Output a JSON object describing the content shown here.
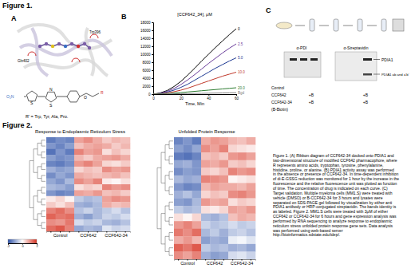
{
  "figure1": {
    "label": "Figure 1.",
    "panel_a": {
      "label": "A",
      "residues": [
        "Gln402",
        "Trp396"
      ],
      "structure_atoms": [
        "O₂N",
        "S",
        "N",
        "S",
        "O",
        "R"
      ],
      "note": "R' = Trp, Tyr, Ala, Pro."
    },
    "panel_b": {
      "label": "B"
    },
    "panel_c": {
      "label": "C",
      "blots": [
        "α-PDI",
        "α-Streptavidin"
      ],
      "bands": [
        "PDIA1",
        "PDIA1 ab and a'b'"
      ],
      "treatments": [
        {
          "label": "Control"
        },
        {
          "label": "CCF642",
          "marks": [
            "+B",
            "+B"
          ]
        },
        {
          "label": "CCF642-34",
          "marks": [
            "+B",
            "+B"
          ]
        },
        {
          "label": "(B-Biotin)"
        }
      ]
    }
  },
  "figure2": {
    "label": "Figure 2."
  },
  "caption": [
    "Figure 1. (A) Ribbon diagram of CCF642-34 docked onto PDIA1 and",
    "two-dimensional structure of modified CCF642 pharmacophore, where",
    "R represents amino acids, tryptophan, tyrosine, phenylalanine,",
    "histidine, proline, or alanine. (B) PDIA1 activity assay was performed",
    "in the absence or presence of CCF642-34. In time-dependent inhibition",
    "of di-E-GSSG reduction was monitored for 1 hour by the increase in the",
    "fluorescence and the relative fluorescence unit was plotted as function",
    "of time. The concentration of drug is indicated on each curve. (C)",
    "Target validation. Multiple myeloma cells (MM1.S) were treated with",
    "vehicle (DMSO) or B-CCF642-34 for 3 hours and lysates were",
    "separated on SDS-PAGE gel followed by visualization by either anti",
    "PDIA1 antibody or HRP-conjugated streptavidin. The bands identity is",
    "as labeled. Figure 2. MM1.S cells were treated with 3μM of either",
    "CCF642 or CCF642-34 for 6 hours and gene expression analysis was",
    "performed by RNA sequencing to analyze response to endoplasmic",
    "reticulum stress unfolded protein response gene sets. Data analysis",
    "was performed using web-based server",
    "http://bioinformatics.sdstate.edu/idep/."
  ],
  "chart_data": [
    {
      "type": "line",
      "title": "[CCF642_34], μM",
      "x_label": "Time, Min",
      "x": [
        0,
        5,
        10,
        15,
        20,
        25,
        30,
        35,
        40,
        45,
        50,
        55,
        60
      ],
      "xlim": [
        0,
        60
      ],
      "xticks": [
        0,
        20,
        40,
        60
      ],
      "ylim": [
        0,
        18000
      ],
      "yticks": [
        0,
        2000,
        4000,
        6000,
        8000,
        10000,
        12000,
        14000,
        16000,
        18000
      ],
      "series": [
        {
          "name": "0",
          "color": "#000000",
          "values": [
            0,
            300,
            900,
            1900,
            3200,
            4800,
            6500,
            8300,
            10000,
            11700,
            13300,
            14900,
            16400
          ]
        },
        {
          "name": "2.5",
          "color": "#6a3d9a",
          "values": [
            0,
            200,
            700,
            1400,
            2400,
            3600,
            4900,
            6300,
            7700,
            9000,
            10300,
            11500,
            12600
          ]
        },
        {
          "name": "5.0",
          "color": "#1f3a93",
          "values": [
            0,
            150,
            500,
            1000,
            1700,
            2500,
            3500,
            4500,
            5500,
            6500,
            7400,
            8300,
            9100
          ]
        },
        {
          "name": "10.0",
          "color": "#c0392b",
          "values": [
            0,
            100,
            300,
            600,
            1000,
            1500,
            2100,
            2700,
            3300,
            3900,
            4500,
            5000,
            5500
          ]
        },
        {
          "name": "20.0",
          "color": "#2e7d32",
          "values": [
            0,
            50,
            150,
            250,
            400,
            550,
            700,
            850,
            1000,
            1150,
            1300,
            1450,
            1600
          ]
        },
        {
          "name": "Bgd",
          "color": "#808080",
          "values": [
            0,
            20,
            50,
            80,
            110,
            140,
            170,
            200,
            230,
            260,
            290,
            320,
            350
          ]
        }
      ]
    },
    {
      "type": "heatmap",
      "title": "Response to Endoplasmic Reticulum Stress",
      "categories": [
        null,
        "Control",
        null,
        null,
        "CCF642",
        null,
        null,
        "CCF642-34",
        null
      ],
      "tick_labels": "x",
      "colorbar": {
        "lim": [
          -2,
          2
        ],
        "ticks": [
          -2,
          0,
          2
        ]
      },
      "cells": [
        [
          -1.5,
          -1.3,
          -1.4,
          0.9,
          1.1,
          0.8,
          0.5,
          0.7,
          0.6
        ],
        [
          -1.2,
          -1.4,
          -1.1,
          0.6,
          0.8,
          0.9,
          0.8,
          0.5,
          0.7
        ],
        [
          -1.6,
          -1.2,
          -1.5,
          1.2,
          0.9,
          1.0,
          0.3,
          0.6,
          0.4
        ],
        [
          -1.1,
          -1.3,
          -1.2,
          0.7,
          0.5,
          0.8,
          0.9,
          1.0,
          0.8
        ],
        [
          -1.4,
          -1.5,
          -1.3,
          1.0,
          1.2,
          0.9,
          0.4,
          0.3,
          0.5
        ],
        [
          -0.9,
          -1.1,
          -1.0,
          0.4,
          0.6,
          0.5,
          1.1,
          0.9,
          1.0
        ],
        [
          -1.3,
          -1.0,
          -1.2,
          0.8,
          0.7,
          0.6,
          0.7,
          0.8,
          0.6
        ],
        [
          -1.0,
          -1.2,
          -0.8,
          1.1,
          0.9,
          1.2,
          0.2,
          0.1,
          0.3
        ],
        [
          -0.8,
          -0.9,
          -1.1,
          0.3,
          0.5,
          0.4,
          1.2,
          1.0,
          1.1
        ],
        [
          -1.2,
          -1.4,
          -1.3,
          0.9,
          0.8,
          1.0,
          0.6,
          0.7,
          0.5
        ],
        [
          0.2,
          0.4,
          0.1,
          -0.6,
          -0.8,
          -0.7,
          0.9,
          1.1,
          1.0
        ],
        [
          0.5,
          0.3,
          0.6,
          -0.9,
          -1.0,
          -0.8,
          0.8,
          0.6,
          0.7
        ],
        [
          1.2,
          1.4,
          1.1,
          -0.7,
          -0.5,
          -0.8,
          -0.6,
          -0.4,
          -0.7
        ],
        [
          1.5,
          1.3,
          1.4,
          -0.9,
          -1.1,
          -0.8,
          -0.5,
          -0.6,
          -0.4
        ],
        [
          1.1,
          1.0,
          1.3,
          -0.4,
          -0.6,
          -0.5,
          -0.8,
          -0.9,
          -0.7
        ],
        [
          1.4,
          1.6,
          1.2,
          -1.0,
          -0.8,
          -0.9,
          -0.3,
          -0.5,
          -0.4
        ]
      ]
    },
    {
      "type": "heatmap",
      "title": "Unfolded Protein Response",
      "categories": [
        null,
        "Control",
        null,
        null,
        "CCF642",
        null,
        null,
        "CCF642-34",
        null
      ],
      "tick_labels": "x",
      "cells": [
        [
          -1.4,
          -1.2,
          -1.5,
          0.8,
          1.0,
          0.9,
          0.7,
          0.6,
          0.8
        ],
        [
          -1.1,
          -1.3,
          -1.0,
          1.1,
          0.9,
          1.2,
          0.4,
          0.3,
          0.2
        ],
        [
          -1.5,
          -1.6,
          -1.4,
          0.6,
          0.7,
          0.5,
          1.0,
          1.1,
          0.9
        ],
        [
          -1.0,
          -0.9,
          -1.2,
          0.9,
          0.8,
          1.0,
          0.5,
          0.6,
          0.4
        ],
        [
          -1.3,
          -1.1,
          -1.2,
          0.5,
          0.4,
          0.6,
          1.2,
          1.0,
          1.1
        ],
        [
          -0.8,
          -1.0,
          -0.9,
          1.2,
          1.1,
          1.0,
          0.1,
          0.2,
          0.3
        ],
        [
          -1.2,
          -1.4,
          -1.3,
          0.7,
          0.9,
          0.8,
          0.8,
          0.7,
          0.9
        ],
        [
          -0.9,
          -0.7,
          -1.0,
          0.4,
          0.6,
          0.5,
          1.1,
          1.2,
          1.0
        ],
        [
          -1.1,
          -1.2,
          -0.8,
          1.0,
          0.8,
          0.9,
          0.3,
          0.5,
          0.4
        ],
        [
          -0.6,
          -0.8,
          -0.7,
          0.3,
          0.2,
          0.4,
          0.9,
          0.8,
          1.0
        ],
        [
          0.3,
          0.1,
          0.4,
          -0.8,
          -0.9,
          -0.7,
          0.6,
          0.8,
          0.7
        ],
        [
          1.0,
          1.2,
          0.9,
          -0.5,
          -0.7,
          -0.6,
          -0.4,
          -0.6,
          -0.5
        ],
        [
          1.3,
          1.1,
          1.4,
          -0.8,
          -0.6,
          -0.9,
          -0.6,
          -0.5,
          -0.7
        ],
        [
          0.8,
          1.0,
          0.7,
          -1.1,
          -0.9,
          -1.0,
          -0.2,
          -0.1,
          -0.3
        ],
        [
          1.5,
          1.3,
          1.6,
          -0.6,
          -0.8,
          -0.7,
          -0.9,
          -0.8,
          -1.0
        ],
        [
          1.1,
          0.9,
          1.2,
          -0.9,
          -1.1,
          -1.0,
          -0.4,
          -0.3,
          -0.5
        ]
      ]
    }
  ]
}
